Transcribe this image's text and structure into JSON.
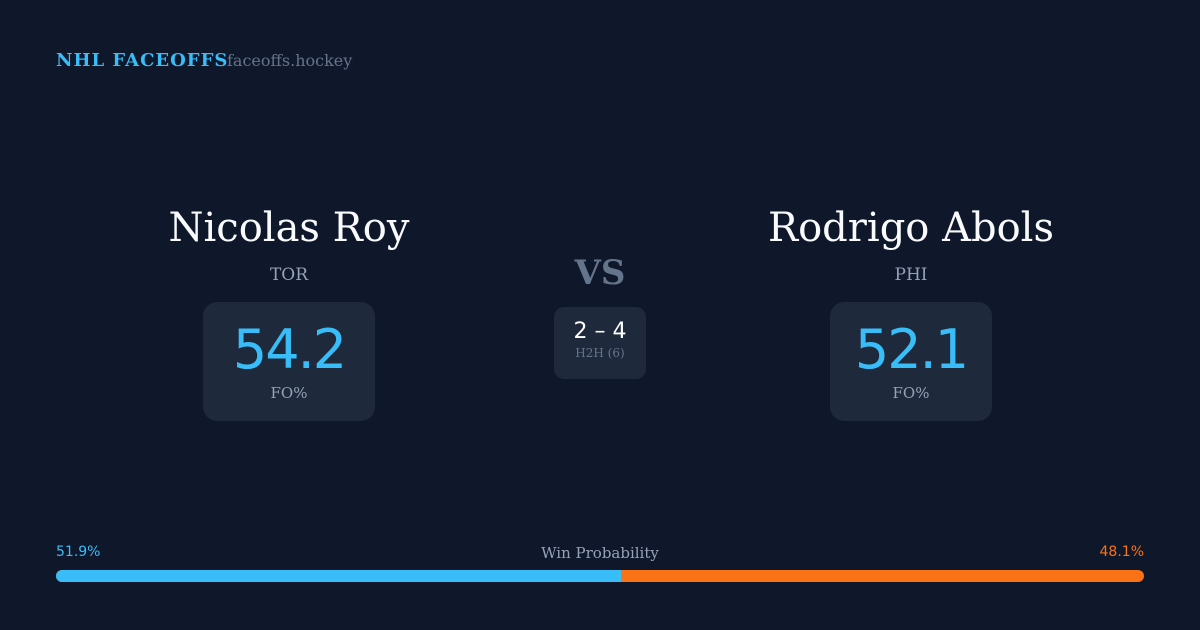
{
  "header": {
    "brand": "NHL FACEOFFS",
    "domain": "faceoffs.hockey"
  },
  "left": {
    "name": "Nicolas Roy",
    "team": "TOR",
    "fo_pct": "54.2",
    "fo_label": "FO%"
  },
  "right": {
    "name": "Rodrigo Abols",
    "team": "PHI",
    "fo_pct": "52.1",
    "fo_label": "FO%"
  },
  "center": {
    "vs": "VS",
    "h2h_score": "2 – 4",
    "h2h_label": "H2H (6)"
  },
  "win_probability": {
    "label": "Win Probability",
    "left_pct": "51.9%",
    "right_pct": "48.1%",
    "left_value": 51.9,
    "left_color": "#38bdf8",
    "right_color": "#f97316"
  }
}
